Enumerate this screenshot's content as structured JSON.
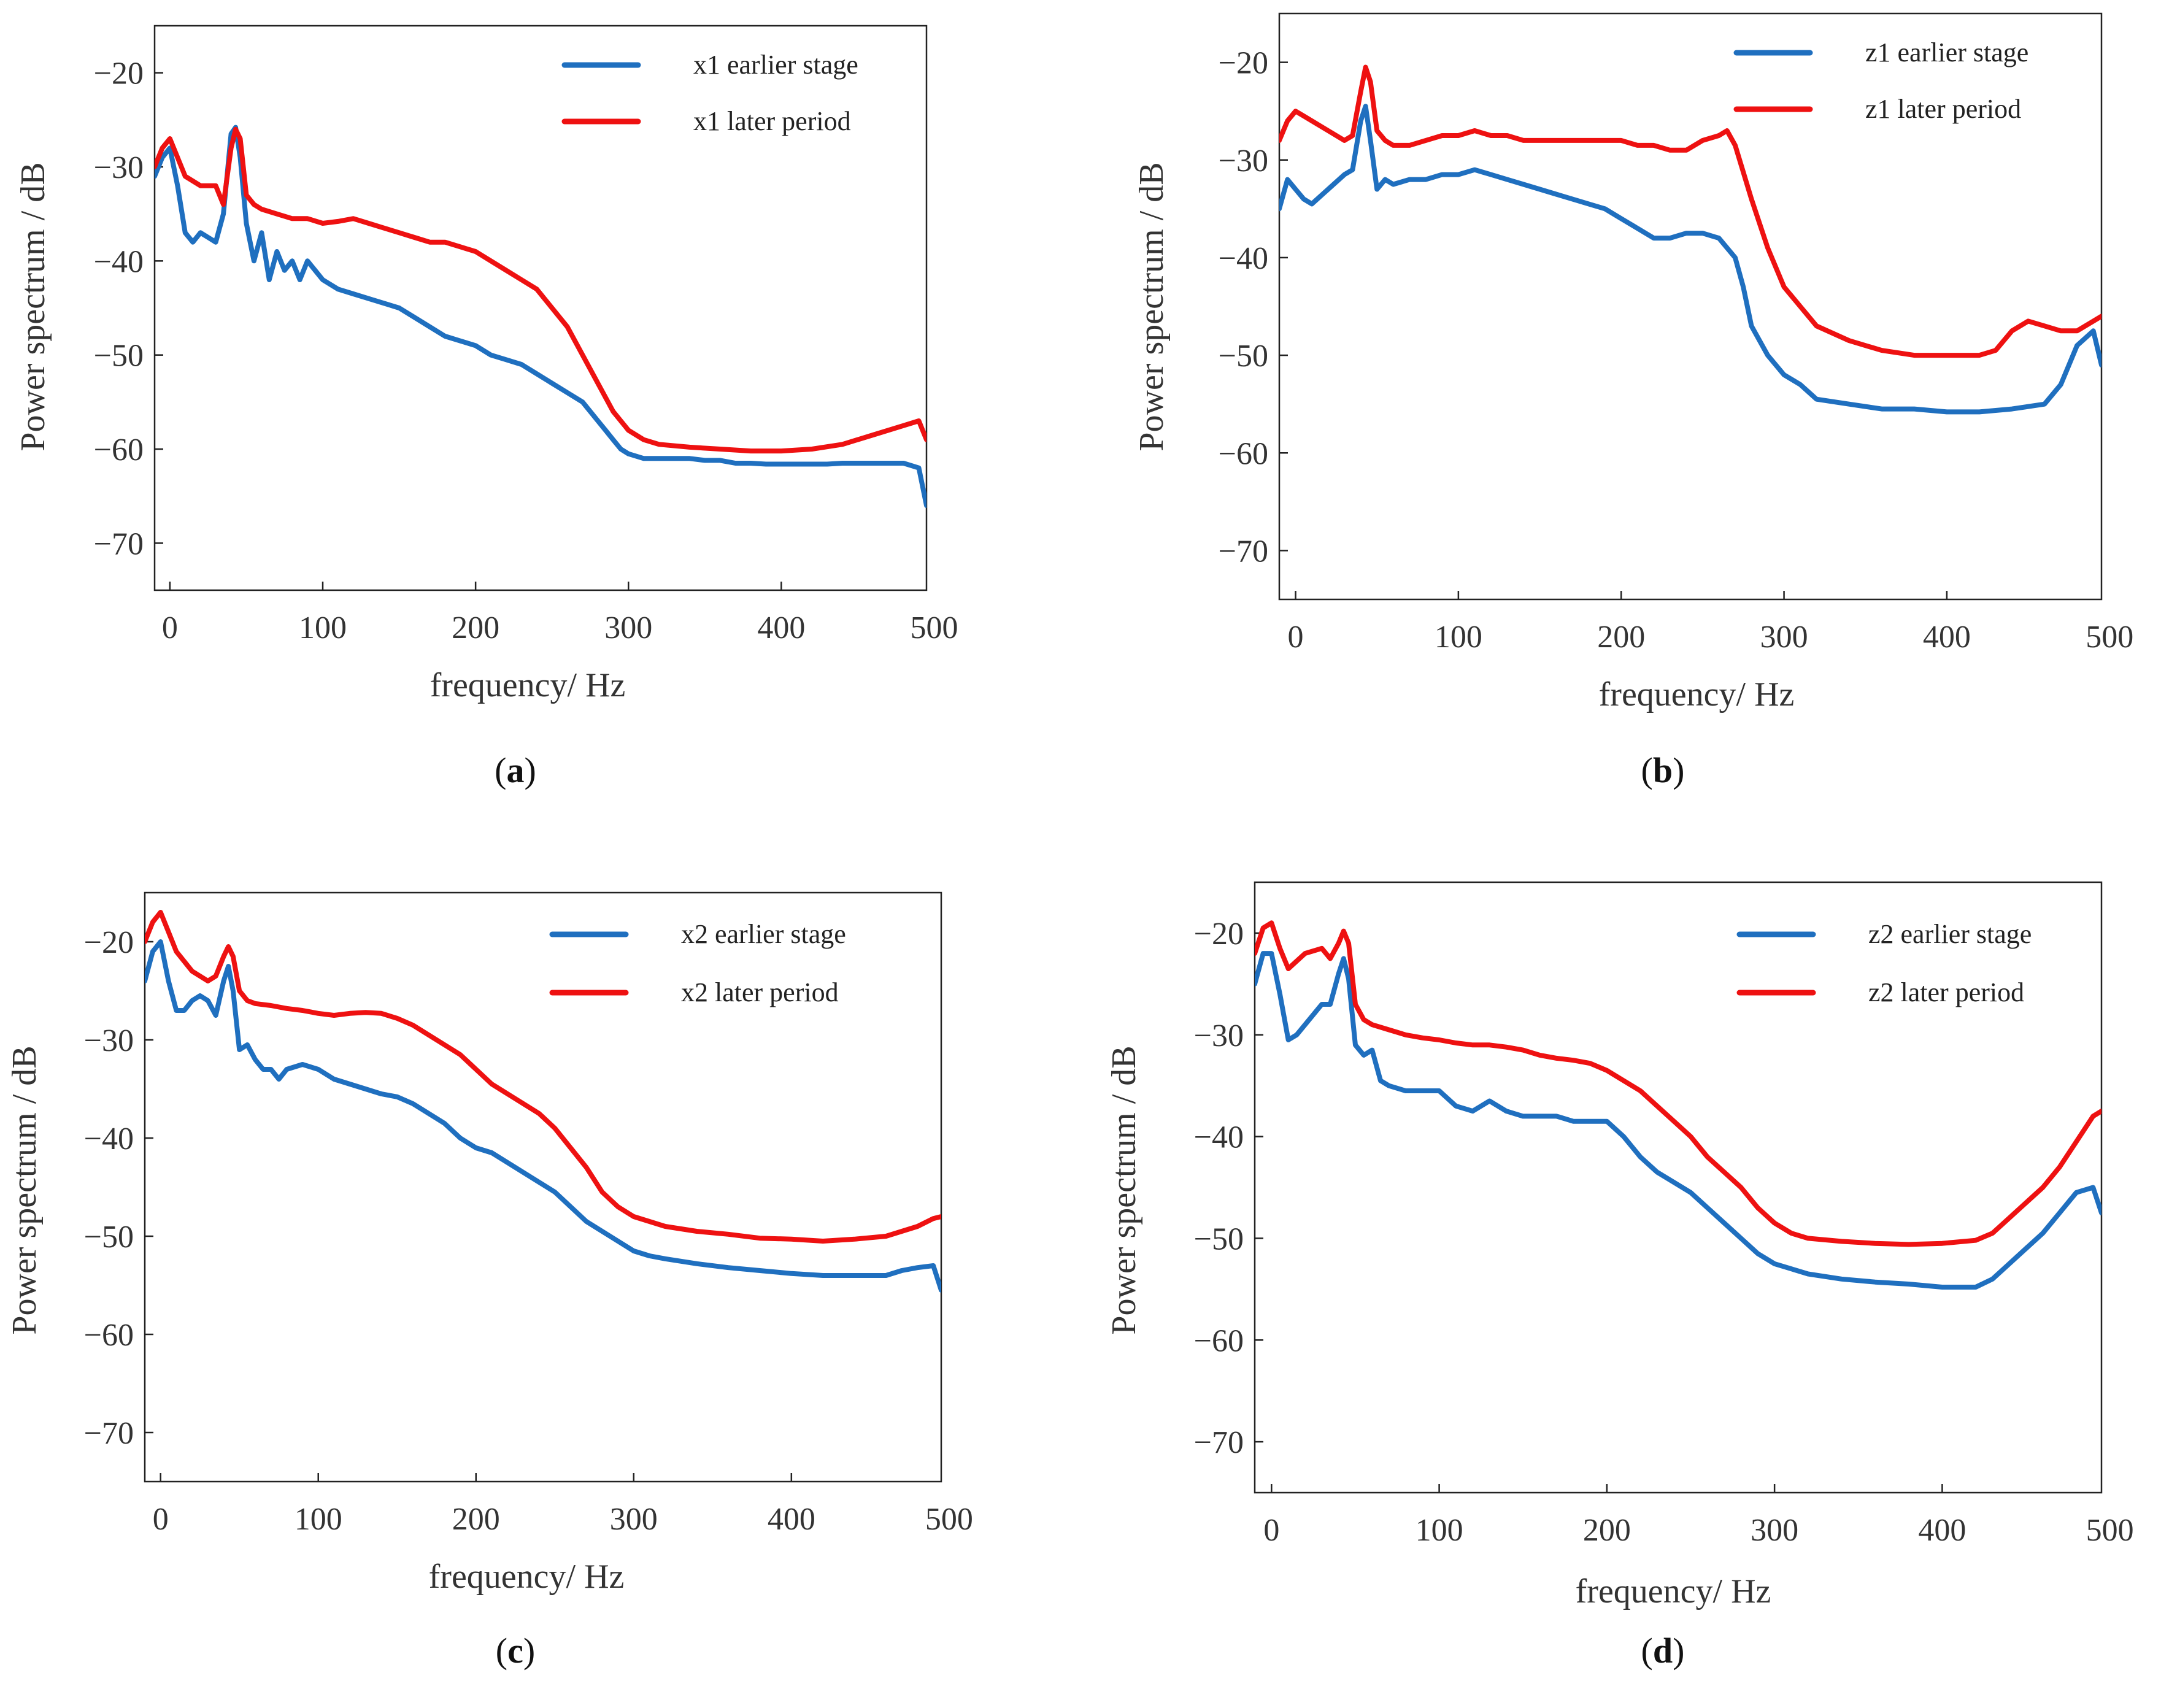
{
  "chart_data": [
    {
      "type": "line",
      "panel": "a",
      "caption": {
        "open": "(",
        "letter": "a",
        "close": ")"
      },
      "xlabel": "frequency/ Hz",
      "ylabel": "Power spectrum  / dB",
      "xlim": [
        -10,
        495
      ],
      "ylim": [
        -75,
        -15
      ],
      "xticks": [
        0,
        100,
        200,
        300,
        400,
        500
      ],
      "yticks": [
        -20,
        -30,
        -40,
        -50,
        -60,
        -70
      ],
      "legend_position": "top-right",
      "series": [
        {
          "name": "x1 earlier stage",
          "color": "#1f6fbf",
          "x": [
            -10,
            -5,
            0,
            5,
            10,
            15,
            20,
            25,
            30,
            35,
            40,
            43,
            46,
            50,
            55,
            60,
            65,
            70,
            75,
            80,
            85,
            90,
            95,
            100,
            110,
            120,
            130,
            140,
            150,
            160,
            170,
            180,
            190,
            200,
            210,
            220,
            230,
            240,
            250,
            260,
            270,
            280,
            285,
            290,
            295,
            300,
            310,
            320,
            330,
            340,
            350,
            360,
            370,
            380,
            390,
            400,
            410,
            420,
            430,
            440,
            450,
            460,
            470,
            480,
            490,
            495
          ],
          "values": [
            -31,
            -29,
            -28,
            -32,
            -37,
            -38,
            -37,
            -37.5,
            -38,
            -35,
            -26.5,
            -25.8,
            -29,
            -36,
            -40,
            -37,
            -42,
            -39,
            -41,
            -40,
            -42,
            -40,
            -41,
            -42,
            -43,
            -43.5,
            -44,
            -44.5,
            -45,
            -46,
            -47,
            -48,
            -48.5,
            -49,
            -50,
            -50.5,
            -51,
            -52,
            -53,
            -54,
            -55,
            -57,
            -58,
            -59,
            -60,
            -60.5,
            -61,
            -61,
            -61,
            -61,
            -61.2,
            -61.2,
            -61.5,
            -61.5,
            -61.6,
            -61.6,
            -61.6,
            -61.6,
            -61.6,
            -61.5,
            -61.5,
            -61.5,
            -61.5,
            -61.5,
            -62,
            -66
          ]
        },
        {
          "name": "x1 later period",
          "color": "#ee1111",
          "x": [
            -10,
            -5,
            0,
            5,
            10,
            20,
            30,
            35,
            40,
            43,
            46,
            50,
            55,
            60,
            70,
            80,
            90,
            100,
            110,
            120,
            130,
            140,
            150,
            160,
            170,
            180,
            190,
            200,
            210,
            220,
            230,
            240,
            250,
            260,
            270,
            280,
            290,
            300,
            310,
            320,
            340,
            360,
            380,
            400,
            420,
            440,
            460,
            480,
            490,
            495
          ],
          "values": [
            -30,
            -28,
            -27,
            -29,
            -31,
            -32,
            -32,
            -34,
            -28,
            -26,
            -27,
            -33,
            -34,
            -34.5,
            -35,
            -35.5,
            -35.5,
            -36,
            -35.8,
            -35.5,
            -36,
            -36.5,
            -37,
            -37.5,
            -38,
            -38,
            -38.5,
            -39,
            -40,
            -41,
            -42,
            -43,
            -45,
            -47,
            -50,
            -53,
            -56,
            -58,
            -59,
            -59.5,
            -59.8,
            -60,
            -60.2,
            -60.2,
            -60,
            -59.5,
            -58.5,
            -57.5,
            -57,
            -59
          ]
        }
      ]
    },
    {
      "type": "line",
      "panel": "b",
      "caption": {
        "open": "(",
        "letter": "b",
        "close": ")"
      },
      "xlabel": "frequency/  Hz",
      "ylabel": "Power spectrum  / dB",
      "xlim": [
        -10,
        495
      ],
      "ylim": [
        -75,
        -15
      ],
      "xticks": [
        0,
        100,
        200,
        300,
        400,
        500
      ],
      "yticks": [
        -20,
        -30,
        -40,
        -50,
        -60,
        -70
      ],
      "legend_position": "top-right",
      "series": [
        {
          "name": "z1 earlier stage",
          "color": "#1f6fbf",
          "x": [
            -10,
            -5,
            0,
            5,
            10,
            20,
            30,
            35,
            40,
            43,
            46,
            50,
            55,
            60,
            70,
            80,
            90,
            100,
            110,
            120,
            130,
            140,
            150,
            160,
            170,
            180,
            190,
            200,
            210,
            220,
            230,
            240,
            250,
            260,
            270,
            275,
            280,
            290,
            300,
            310,
            320,
            340,
            360,
            380,
            400,
            420,
            440,
            460,
            470,
            480,
            490,
            495
          ],
          "values": [
            -35,
            -32,
            -33,
            -34,
            -34.5,
            -33,
            -31.5,
            -31,
            -26,
            -24.5,
            -28,
            -33,
            -32,
            -32.5,
            -32,
            -32,
            -31.5,
            -31.5,
            -31,
            -31.5,
            -32,
            -32.5,
            -33,
            -33.5,
            -34,
            -34.5,
            -35,
            -36,
            -37,
            -38,
            -38,
            -37.5,
            -37.5,
            -38,
            -40,
            -43,
            -47,
            -50,
            -52,
            -53,
            -54.5,
            -55,
            -55.5,
            -55.5,
            -55.8,
            -55.8,
            -55.5,
            -55,
            -53,
            -49,
            -47.5,
            -51
          ]
        },
        {
          "name": "z1 later period",
          "color": "#ee1111",
          "x": [
            -10,
            -5,
            0,
            5,
            10,
            20,
            30,
            35,
            40,
            43,
            46,
            50,
            55,
            60,
            70,
            80,
            90,
            100,
            110,
            120,
            130,
            140,
            150,
            160,
            170,
            180,
            190,
            200,
            210,
            220,
            230,
            240,
            250,
            260,
            265,
            270,
            280,
            290,
            300,
            310,
            320,
            340,
            360,
            380,
            400,
            420,
            430,
            440,
            450,
            460,
            470,
            480,
            490,
            495
          ],
          "values": [
            -28,
            -26,
            -25,
            -25.5,
            -26,
            -27,
            -28,
            -27.5,
            -23,
            -20.5,
            -22,
            -27,
            -28,
            -28.5,
            -28.5,
            -28,
            -27.5,
            -27.5,
            -27,
            -27.5,
            -27.5,
            -28,
            -28,
            -28,
            -28,
            -28,
            -28,
            -28,
            -28.5,
            -28.5,
            -29,
            -29,
            -28,
            -27.5,
            -27,
            -28.5,
            -34,
            -39,
            -43,
            -45,
            -47,
            -48.5,
            -49.5,
            -50,
            -50,
            -50,
            -49.5,
            -47.5,
            -46.5,
            -47,
            -47.5,
            -47.5,
            -46.5,
            -46
          ]
        }
      ]
    },
    {
      "type": "line",
      "panel": "c",
      "caption": {
        "open": "(",
        "letter": "c",
        "close": ")"
      },
      "xlabel": "frequency/  Hz",
      "ylabel": "Power spectrum  / dB",
      "xlim": [
        -10,
        495
      ],
      "ylim": [
        -75,
        -15
      ],
      "xticks": [
        0,
        100,
        200,
        300,
        400,
        500
      ],
      "yticks": [
        -20,
        -30,
        -40,
        -50,
        -60,
        -70
      ],
      "legend_position": "top-right",
      "series": [
        {
          "name": "x2 earlier stage",
          "color": "#1f6fbf",
          "x": [
            -10,
            -5,
            0,
            5,
            10,
            15,
            20,
            25,
            30,
            35,
            40,
            43,
            46,
            50,
            55,
            60,
            65,
            70,
            75,
            80,
            90,
            100,
            110,
            120,
            130,
            140,
            150,
            160,
            170,
            180,
            190,
            200,
            210,
            220,
            230,
            240,
            250,
            260,
            270,
            280,
            290,
            300,
            310,
            320,
            340,
            360,
            380,
            400,
            420,
            440,
            460,
            470,
            480,
            490,
            495
          ],
          "values": [
            -24,
            -21,
            -20,
            -24,
            -27,
            -27,
            -26,
            -25.5,
            -26,
            -27.5,
            -24,
            -22.5,
            -25,
            -31,
            -30.5,
            -32,
            -33,
            -33,
            -34,
            -33,
            -32.5,
            -33,
            -34,
            -34.5,
            -35,
            -35.5,
            -35.8,
            -36.5,
            -37.5,
            -38.5,
            -40,
            -41,
            -41.5,
            -42.5,
            -43.5,
            -44.5,
            -45.5,
            -47,
            -48.5,
            -49.5,
            -50.5,
            -51.5,
            -52,
            -52.3,
            -52.8,
            -53.2,
            -53.5,
            -53.8,
            -54,
            -54,
            -54,
            -53.5,
            -53.2,
            -53,
            -55.5
          ]
        },
        {
          "name": "x2 later period",
          "color": "#ee1111",
          "x": [
            -10,
            -5,
            0,
            5,
            10,
            20,
            30,
            35,
            40,
            43,
            46,
            50,
            55,
            60,
            70,
            80,
            90,
            100,
            110,
            120,
            130,
            140,
            150,
            160,
            170,
            180,
            190,
            200,
            210,
            220,
            230,
            240,
            250,
            260,
            270,
            280,
            290,
            300,
            310,
            320,
            340,
            360,
            380,
            400,
            420,
            440,
            460,
            480,
            490,
            495
          ],
          "values": [
            -20,
            -18,
            -17,
            -19,
            -21,
            -23,
            -24,
            -23.5,
            -21.5,
            -20.5,
            -21.5,
            -25,
            -26,
            -26.3,
            -26.5,
            -26.8,
            -27,
            -27.3,
            -27.5,
            -27.3,
            -27.2,
            -27.3,
            -27.8,
            -28.5,
            -29.5,
            -30.5,
            -31.5,
            -33,
            -34.5,
            -35.5,
            -36.5,
            -37.5,
            -39,
            -41,
            -43,
            -45.5,
            -47,
            -48,
            -48.5,
            -49,
            -49.5,
            -49.8,
            -50.2,
            -50.3,
            -50.5,
            -50.3,
            -50,
            -49,
            -48.2,
            -48
          ]
        }
      ]
    },
    {
      "type": "line",
      "panel": "d",
      "caption": {
        "open": "(",
        "letter": "d",
        "close": ")"
      },
      "xlabel": "frequency/  Hz",
      "ylabel": "Power spectrum  / dB",
      "xlim": [
        -10,
        495
      ],
      "ylim": [
        -75,
        -15
      ],
      "xticks": [
        0,
        100,
        200,
        300,
        400,
        500
      ],
      "yticks": [
        -20,
        -30,
        -40,
        -50,
        -60,
        -70
      ],
      "legend_position": "top-right",
      "series": [
        {
          "name": "z2 earlier stage",
          "color": "#1f6fbf",
          "x": [
            -10,
            -5,
            0,
            5,
            10,
            15,
            20,
            30,
            35,
            40,
            43,
            46,
            50,
            55,
            60,
            65,
            70,
            80,
            90,
            100,
            110,
            120,
            130,
            140,
            150,
            160,
            170,
            180,
            190,
            200,
            210,
            220,
            230,
            240,
            250,
            260,
            270,
            280,
            290,
            300,
            310,
            320,
            340,
            360,
            380,
            400,
            420,
            430,
            440,
            450,
            460,
            470,
            480,
            490,
            495
          ],
          "values": [
            -25,
            -22,
            -22,
            -26,
            -30.5,
            -30,
            -29,
            -27,
            -27,
            -24,
            -22.5,
            -24.5,
            -31,
            -32,
            -31.5,
            -34.5,
            -35,
            -35.5,
            -35.5,
            -35.5,
            -37,
            -37.5,
            -36.5,
            -37.5,
            -38,
            -38,
            -38,
            -38.5,
            -38.5,
            -38.5,
            -40,
            -42,
            -43.5,
            -44.5,
            -45.5,
            -47,
            -48.5,
            -50,
            -51.5,
            -52.5,
            -53,
            -53.5,
            -54,
            -54.3,
            -54.5,
            -54.8,
            -54.8,
            -54,
            -52.5,
            -51,
            -49.5,
            -47.5,
            -45.5,
            -45,
            -47.5
          ]
        },
        {
          "name": "z2 later period",
          "color": "#ee1111",
          "x": [
            -10,
            -5,
            0,
            5,
            10,
            20,
            30,
            35,
            40,
            43,
            46,
            50,
            55,
            60,
            70,
            80,
            90,
            100,
            110,
            120,
            130,
            140,
            150,
            160,
            170,
            180,
            190,
            200,
            210,
            220,
            230,
            240,
            250,
            260,
            270,
            280,
            290,
            300,
            310,
            320,
            340,
            360,
            380,
            400,
            420,
            430,
            440,
            450,
            460,
            470,
            480,
            490,
            495
          ],
          "values": [
            -22,
            -19.5,
            -19,
            -21.5,
            -23.5,
            -22,
            -21.5,
            -22.5,
            -21,
            -19.8,
            -21,
            -27,
            -28.5,
            -29,
            -29.5,
            -30,
            -30.3,
            -30.5,
            -30.8,
            -31,
            -31,
            -31.2,
            -31.5,
            -32,
            -32.3,
            -32.5,
            -32.8,
            -33.5,
            -34.5,
            -35.5,
            -37,
            -38.5,
            -40,
            -42,
            -43.5,
            -45,
            -47,
            -48.5,
            -49.5,
            -50,
            -50.3,
            -50.5,
            -50.6,
            -50.5,
            -50.2,
            -49.5,
            -48,
            -46.5,
            -45,
            -43,
            -40.5,
            -38,
            -37.5
          ]
        }
      ]
    }
  ]
}
